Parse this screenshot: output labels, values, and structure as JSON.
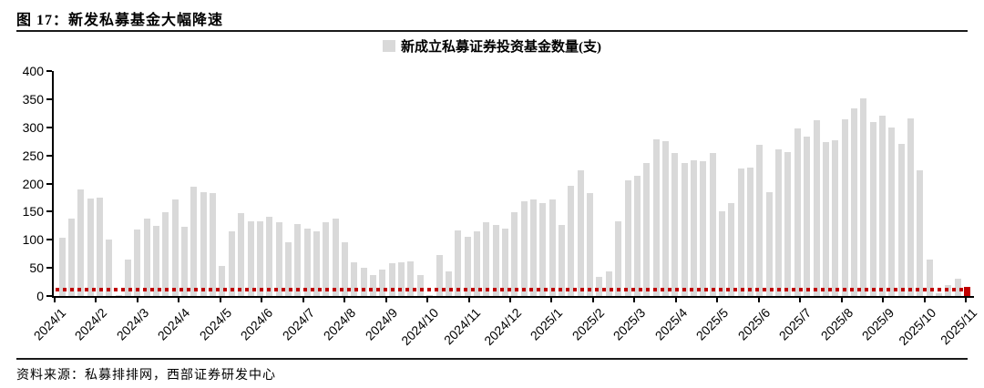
{
  "page": {
    "figure_title": "图 17：新发私募基金大幅降速",
    "source_note": "资料来源：私募排排网，西部证券研发中心"
  },
  "legend": {
    "label": "新成立私募证券投资基金数量(支)",
    "swatch_color": "#d9d9d9"
  },
  "chart_data": {
    "type": "bar",
    "title": "新成立私募证券投资基金数量(支)",
    "x_frequency": "weekly",
    "x_tick_labels": [
      "2024/1",
      "2024/2",
      "2024/3",
      "2024/4",
      "2024/5",
      "2024/6",
      "2024/7",
      "2024/8",
      "2024/9",
      "2024/10",
      "2024/11",
      "2024/12",
      "2025/1",
      "2025/2",
      "2025/3",
      "2025/4",
      "2025/5",
      "2025/6",
      "2025/7",
      "2025/8",
      "2025/9",
      "2025/10",
      "2025/11"
    ],
    "values": [
      103,
      138,
      190,
      173,
      175,
      101,
      2,
      64,
      119,
      137,
      125,
      149,
      172,
      123,
      195,
      185,
      183,
      54,
      115,
      147,
      133,
      133,
      141,
      132,
      95,
      128,
      120,
      115,
      132,
      137,
      96,
      60,
      50,
      38,
      47,
      58,
      60,
      61,
      37,
      2,
      73,
      43,
      116,
      106,
      115,
      132,
      127,
      120,
      149,
      168,
      172,
      166,
      171,
      126,
      196,
      223,
      183,
      34,
      44,
      133,
      206,
      214,
      236,
      279,
      276,
      254,
      236,
      242,
      240,
      254,
      150,
      165,
      227,
      228,
      269,
      185,
      260,
      256,
      298,
      283,
      312,
      274,
      277,
      314,
      333,
      351,
      310,
      321,
      299,
      270,
      316,
      224,
      64,
      5,
      20,
      30,
      17
    ],
    "bar_color": "#d9d9d9",
    "last_bar_color": "#c00000",
    "reference_line": {
      "value": 12,
      "color": "#c00000",
      "style": "dotted"
    },
    "ylim": [
      0,
      400
    ],
    "y_ticks": [
      0,
      50,
      100,
      150,
      200,
      250,
      300,
      350,
      400
    ],
    "grid": false,
    "legend_position": "top-center"
  }
}
